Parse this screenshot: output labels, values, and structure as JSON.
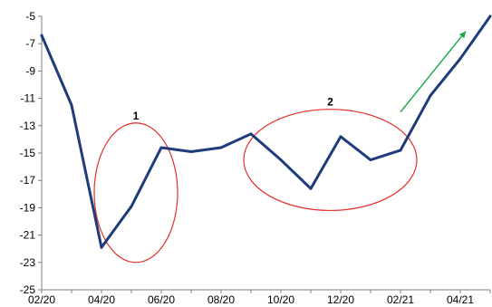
{
  "chart_data": {
    "type": "line",
    "title": "",
    "xlabel": "",
    "ylabel": "",
    "x": [
      "02/20",
      "03/20",
      "04/20",
      "05/20",
      "06/20",
      "07/20",
      "08/20",
      "09/20",
      "10/20",
      "11/20",
      "12/20",
      "01/21",
      "02/21",
      "03/21",
      "04/21",
      "05/21"
    ],
    "x_tick_labels": [
      "02/20",
      "04/20",
      "06/20",
      "08/20",
      "10/20",
      "12/20",
      "02/21",
      "04/21"
    ],
    "series": [
      {
        "values": [
          -6.4,
          -11.5,
          -21.9,
          -18.9,
          -14.6,
          -14.9,
          -14.6,
          -13.6,
          -15.5,
          -17.6,
          -13.8,
          -15.5,
          -14.8,
          -10.8,
          -8.1,
          -5.0
        ]
      }
    ],
    "ylim": [
      -25,
      -5
    ],
    "y_ticks": [
      -5,
      -7,
      -9,
      -11,
      -13,
      -15,
      -17,
      -19,
      -21,
      -23,
      -25
    ],
    "grid": false,
    "legend": "none",
    "annotations": [
      {
        "label": "1",
        "type": "ellipse",
        "from": "04/20",
        "to": "06/20",
        "y_range": [
          -23,
          -12.8
        ]
      },
      {
        "label": "2",
        "type": "ellipse",
        "from": "09/20",
        "to": "02/21",
        "y_range": [
          -19.2,
          -11.8
        ]
      },
      {
        "label": "",
        "type": "arrow",
        "from": [
          "02/21",
          -12.0
        ],
        "to": [
          "04/21",
          -6.1
        ]
      }
    ],
    "colors": {
      "line": "#1F3B7A",
      "axis": "#808080",
      "ellipse": "#E3302B",
      "arrow": "#17A845"
    }
  }
}
